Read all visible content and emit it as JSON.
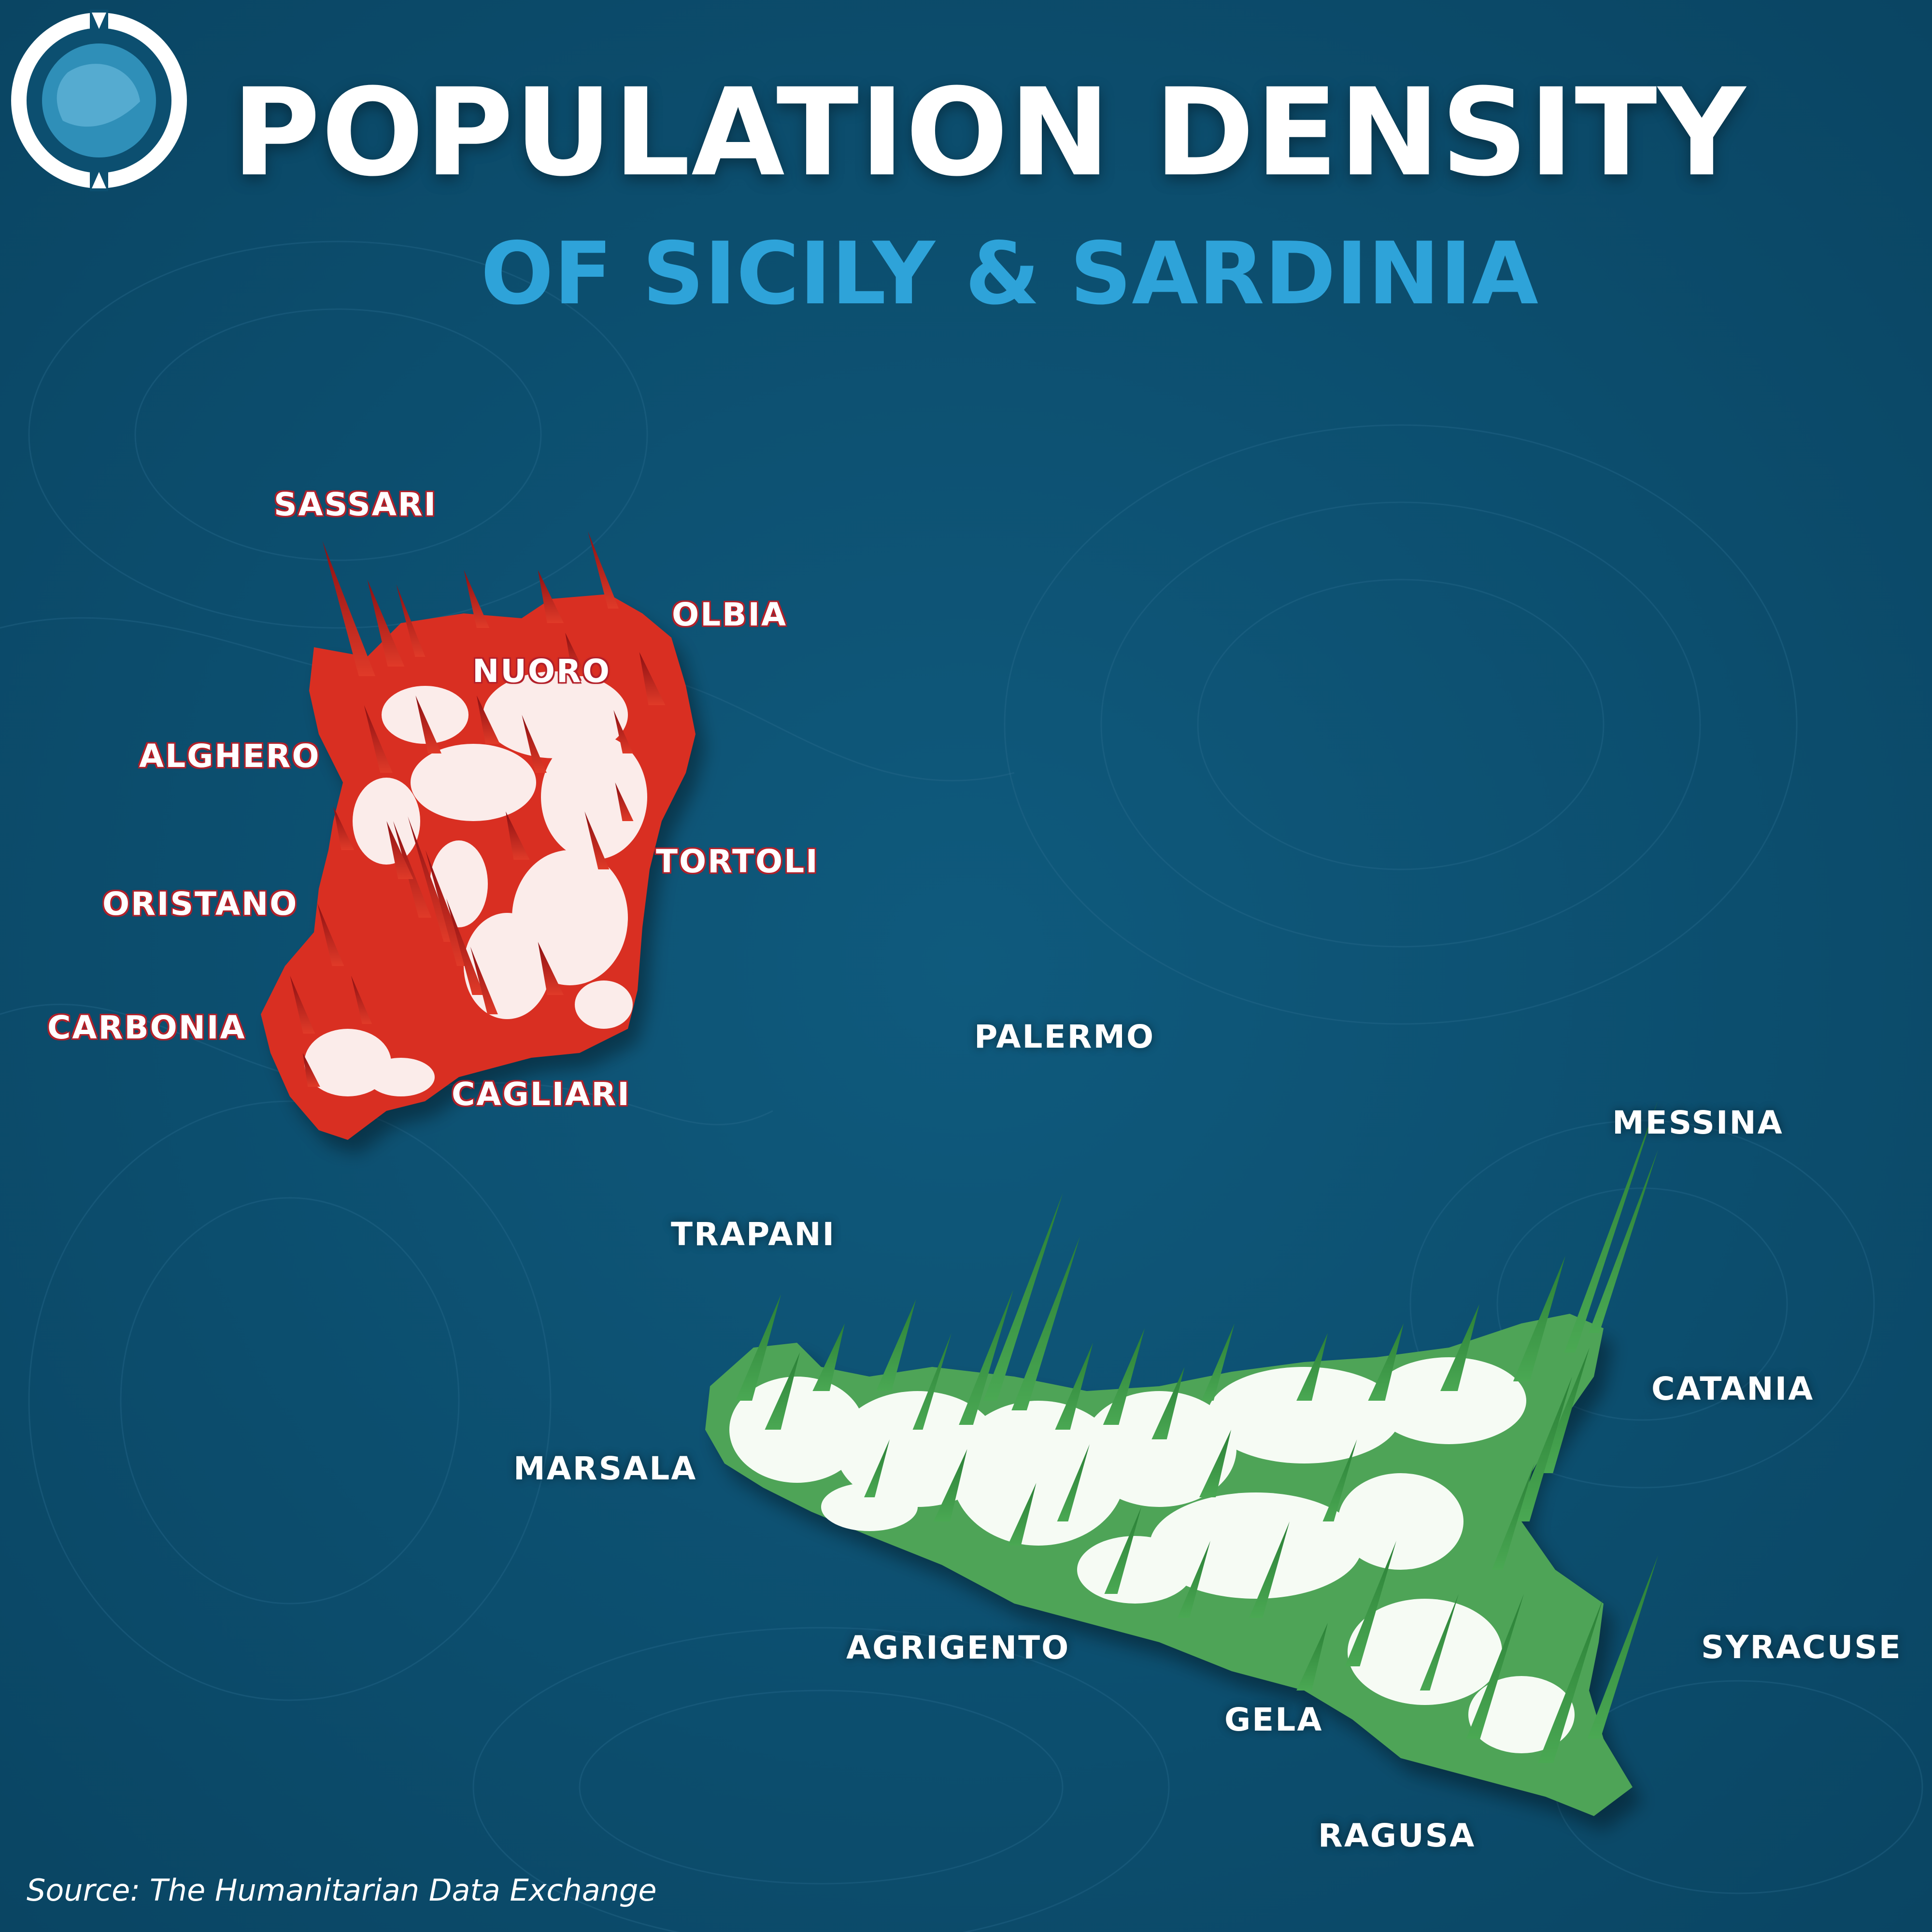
{
  "title": "POPULATION DENSITY",
  "subtitle": "OF SICILY & SARDINIA",
  "source": "Source: The Humanitarian Data Exchange",
  "colors": {
    "background": "#0c4f70",
    "sardinia": "#d92f22",
    "sicily": "#3b9a45",
    "subtitle": "#2ea3d9",
    "land_low": "#fbecea"
  },
  "icons": [
    "circular-logo-icon"
  ],
  "cities": {
    "sardinia": [
      "SASSARI",
      "OLBIA",
      "NUORO",
      "ALGHERO",
      "TORTOLI",
      "ORISTANO",
      "CARBONIA",
      "CAGLIARI"
    ],
    "sicily": [
      "PALERMO",
      "MESSINA",
      "TRAPANI",
      "CATANIA",
      "MARSALA",
      "AGRIGENTO",
      "SYRACUSE",
      "GELA",
      "RAGUSA"
    ]
  }
}
